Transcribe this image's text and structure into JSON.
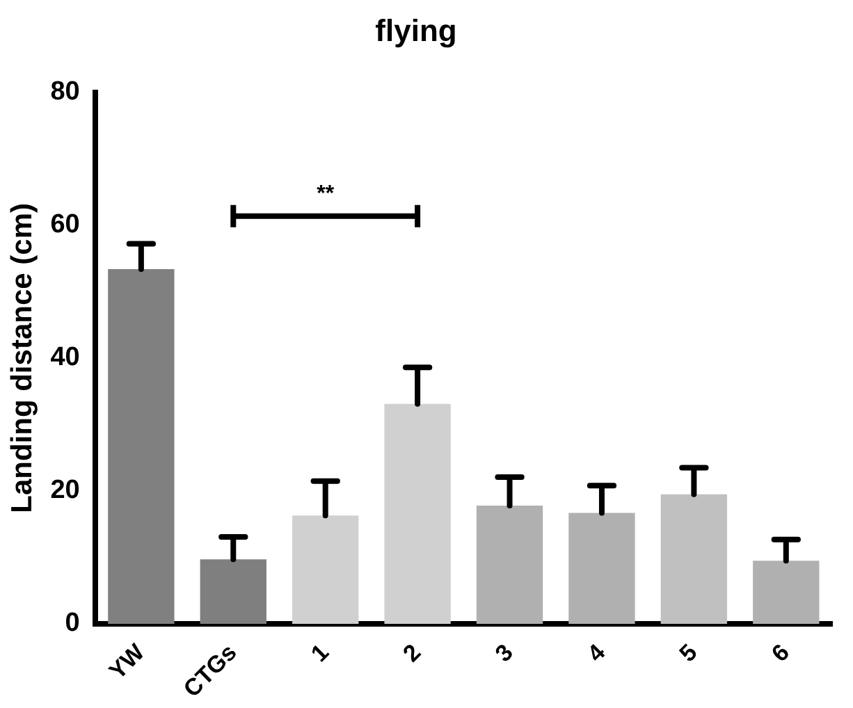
{
  "chart_data": {
    "type": "bar",
    "title": "flying",
    "ylabel": "Landing distance (cm)",
    "categories": [
      "YW",
      "CTGs",
      "1",
      "2",
      "3",
      "4",
      "5",
      "6"
    ],
    "values": [
      53.4,
      9.7,
      16.3,
      33.1,
      17.8,
      16.7,
      19.5,
      9.5
    ],
    "errors": [
      [
        53.4,
        57.2
      ],
      [
        9.7,
        13.1
      ],
      [
        16.3,
        21.5
      ],
      [
        33.1,
        38.6
      ],
      [
        17.8,
        22.1
      ],
      [
        16.7,
        20.8
      ],
      [
        19.5,
        23.5
      ],
      [
        9.5,
        12.7
      ]
    ],
    "colors": [
      "#808080",
      "#7f7f7f",
      "#d0d0d0",
      "#d0d0d0",
      "#b0b0b0",
      "#b0b0b0",
      "#c0c0c0",
      "#b0b0b0"
    ],
    "ylim": [
      0,
      80
    ],
    "yticks": [
      0,
      20,
      40,
      60,
      80
    ],
    "grid": false,
    "legend": false,
    "annotations": [
      "**"
    ]
  }
}
